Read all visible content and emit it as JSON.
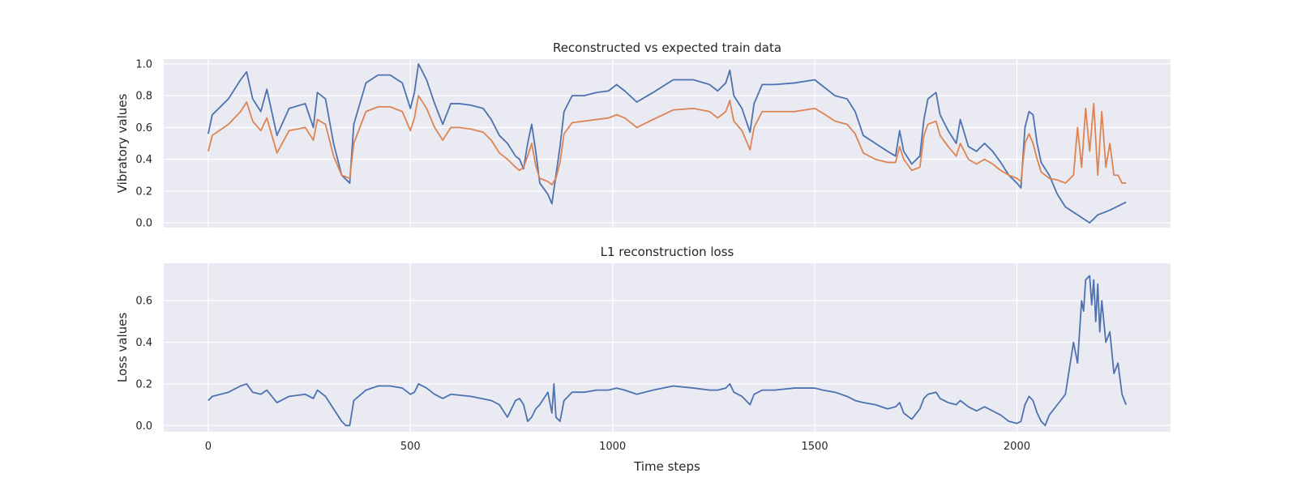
{
  "chart_data": [
    {
      "type": "line",
      "title": "Reconstructed vs expected train data",
      "ylabel": "Vibratory values",
      "xlabel": "",
      "xlim": [
        -110,
        2380
      ],
      "ylim": [
        -0.03,
        1.03
      ],
      "yticks": [
        0.0,
        0.2,
        0.4,
        0.6,
        0.8,
        1.0
      ],
      "ytick_labels": [
        "0.0",
        "0.2",
        "0.4",
        "0.6",
        "0.8",
        "1.0"
      ],
      "xticks": [
        0,
        500,
        1000,
        1500,
        2000
      ],
      "grid": true,
      "series": [
        {
          "color": "#4c72b0",
          "x": [
            0,
            10,
            50,
            80,
            95,
            110,
            130,
            145,
            170,
            200,
            240,
            260,
            270,
            290,
            310,
            330,
            350,
            360,
            390,
            420,
            450,
            480,
            500,
            510,
            520,
            540,
            560,
            580,
            600,
            620,
            650,
            680,
            700,
            720,
            740,
            760,
            770,
            780,
            790,
            800,
            810,
            820,
            840,
            850,
            860,
            870,
            880,
            900,
            930,
            960,
            990,
            1010,
            1030,
            1060,
            1100,
            1150,
            1200,
            1240,
            1260,
            1280,
            1290,
            1295,
            1300,
            1320,
            1340,
            1350,
            1370,
            1400,
            1450,
            1500,
            1520,
            1550,
            1580,
            1600,
            1620,
            1650,
            1680,
            1700,
            1710,
            1720,
            1740,
            1760,
            1770,
            1780,
            1800,
            1810,
            1830,
            1850,
            1860,
            1880,
            1900,
            1920,
            1940,
            1960,
            1980,
            2000,
            2010,
            2020,
            2030,
            2040,
            2050,
            2060,
            2080,
            2100,
            2120,
            2150,
            2180,
            2200,
            2230,
            2270
          ],
          "values": [
            0.56,
            0.68,
            0.78,
            0.9,
            0.95,
            0.78,
            0.7,
            0.84,
            0.55,
            0.72,
            0.75,
            0.6,
            0.82,
            0.78,
            0.5,
            0.3,
            0.25,
            0.62,
            0.88,
            0.93,
            0.93,
            0.88,
            0.72,
            0.82,
            1.0,
            0.9,
            0.75,
            0.62,
            0.75,
            0.75,
            0.74,
            0.72,
            0.65,
            0.55,
            0.5,
            0.42,
            0.4,
            0.34,
            0.5,
            0.62,
            0.45,
            0.25,
            0.18,
            0.12,
            0.3,
            0.48,
            0.7,
            0.8,
            0.8,
            0.82,
            0.83,
            0.87,
            0.83,
            0.76,
            0.82,
            0.9,
            0.9,
            0.87,
            0.83,
            0.88,
            0.96,
            0.88,
            0.8,
            0.72,
            0.57,
            0.75,
            0.87,
            0.87,
            0.88,
            0.9,
            0.86,
            0.8,
            0.78,
            0.7,
            0.55,
            0.5,
            0.45,
            0.42,
            0.58,
            0.45,
            0.37,
            0.42,
            0.65,
            0.78,
            0.82,
            0.68,
            0.58,
            0.5,
            0.65,
            0.48,
            0.45,
            0.5,
            0.45,
            0.38,
            0.3,
            0.25,
            0.22,
            0.6,
            0.7,
            0.68,
            0.5,
            0.38,
            0.3,
            0.18,
            0.1,
            0.05,
            0.0,
            0.05,
            0.08,
            0.13
          ]
        },
        {
          "color": "#dd8452",
          "x": [
            0,
            10,
            50,
            80,
            95,
            110,
            130,
            145,
            170,
            200,
            240,
            260,
            270,
            290,
            310,
            330,
            350,
            360,
            390,
            420,
            450,
            480,
            500,
            510,
            520,
            540,
            560,
            580,
            600,
            620,
            650,
            680,
            700,
            720,
            740,
            760,
            770,
            780,
            790,
            800,
            810,
            820,
            840,
            850,
            860,
            870,
            880,
            900,
            930,
            960,
            990,
            1010,
            1030,
            1060,
            1100,
            1150,
            1200,
            1240,
            1260,
            1280,
            1290,
            1295,
            1300,
            1320,
            1340,
            1350,
            1370,
            1400,
            1450,
            1500,
            1520,
            1550,
            1580,
            1600,
            1620,
            1650,
            1680,
            1700,
            1710,
            1720,
            1740,
            1760,
            1770,
            1780,
            1800,
            1810,
            1830,
            1850,
            1860,
            1880,
            1900,
            1920,
            1940,
            1960,
            1980,
            2000,
            2010,
            2020,
            2030,
            2040,
            2050,
            2060,
            2080,
            2100,
            2120,
            2140,
            2150,
            2160,
            2170,
            2180,
            2190,
            2200,
            2210,
            2220,
            2230,
            2240,
            2250,
            2260,
            2270
          ],
          "values": [
            0.45,
            0.55,
            0.62,
            0.7,
            0.76,
            0.64,
            0.58,
            0.66,
            0.44,
            0.58,
            0.6,
            0.52,
            0.65,
            0.62,
            0.42,
            0.3,
            0.28,
            0.5,
            0.7,
            0.73,
            0.73,
            0.7,
            0.58,
            0.66,
            0.8,
            0.72,
            0.6,
            0.52,
            0.6,
            0.6,
            0.59,
            0.57,
            0.52,
            0.44,
            0.4,
            0.35,
            0.33,
            0.35,
            0.42,
            0.5,
            0.36,
            0.28,
            0.26,
            0.24,
            0.28,
            0.38,
            0.56,
            0.63,
            0.64,
            0.65,
            0.66,
            0.68,
            0.66,
            0.6,
            0.65,
            0.71,
            0.72,
            0.7,
            0.66,
            0.7,
            0.77,
            0.7,
            0.64,
            0.58,
            0.46,
            0.6,
            0.7,
            0.7,
            0.7,
            0.72,
            0.69,
            0.64,
            0.62,
            0.56,
            0.44,
            0.4,
            0.38,
            0.38,
            0.48,
            0.4,
            0.33,
            0.35,
            0.55,
            0.62,
            0.64,
            0.55,
            0.48,
            0.42,
            0.5,
            0.4,
            0.37,
            0.4,
            0.37,
            0.33,
            0.3,
            0.28,
            0.26,
            0.5,
            0.56,
            0.5,
            0.4,
            0.32,
            0.28,
            0.27,
            0.25,
            0.3,
            0.6,
            0.35,
            0.72,
            0.45,
            0.75,
            0.3,
            0.7,
            0.35,
            0.5,
            0.3,
            0.3,
            0.25,
            0.25
          ]
        }
      ]
    },
    {
      "type": "line",
      "title": "L1 reconstruction loss",
      "ylabel": "Loss values",
      "xlabel": "Time steps",
      "xlim": [
        -110,
        2380
      ],
      "ylim": [
        -0.03,
        0.78
      ],
      "yticks": [
        0.0,
        0.2,
        0.4,
        0.6
      ],
      "ytick_labels": [
        "0.0",
        "0.2",
        "0.4",
        "0.6"
      ],
      "xticks": [
        0,
        500,
        1000,
        1500,
        2000
      ],
      "xtick_labels": [
        "0",
        "500",
        "1000",
        "1500",
        "2000"
      ],
      "grid": true,
      "series": [
        {
          "color": "#4c72b0",
          "x": [
            0,
            10,
            50,
            80,
            95,
            110,
            130,
            145,
            170,
            200,
            240,
            260,
            270,
            290,
            310,
            330,
            340,
            350,
            360,
            390,
            420,
            450,
            480,
            500,
            510,
            520,
            540,
            560,
            580,
            600,
            650,
            700,
            720,
            740,
            760,
            770,
            780,
            790,
            800,
            810,
            820,
            840,
            850,
            855,
            860,
            870,
            880,
            900,
            930,
            960,
            990,
            1010,
            1030,
            1060,
            1100,
            1150,
            1200,
            1240,
            1260,
            1280,
            1290,
            1295,
            1300,
            1320,
            1340,
            1350,
            1370,
            1400,
            1450,
            1500,
            1520,
            1550,
            1580,
            1600,
            1620,
            1650,
            1680,
            1700,
            1710,
            1720,
            1740,
            1760,
            1770,
            1780,
            1800,
            1810,
            1830,
            1850,
            1860,
            1880,
            1900,
            1920,
            1940,
            1960,
            1980,
            2000,
            2010,
            2020,
            2030,
            2040,
            2050,
            2060,
            2070,
            2080,
            2100,
            2120,
            2140,
            2150,
            2160,
            2165,
            2170,
            2180,
            2185,
            2190,
            2195,
            2200,
            2205,
            2210,
            2220,
            2230,
            2240,
            2250,
            2260,
            2270
          ],
          "values": [
            0.12,
            0.14,
            0.16,
            0.19,
            0.2,
            0.16,
            0.15,
            0.17,
            0.11,
            0.14,
            0.15,
            0.13,
            0.17,
            0.14,
            0.08,
            0.02,
            0.0,
            0.0,
            0.12,
            0.17,
            0.19,
            0.19,
            0.18,
            0.15,
            0.16,
            0.2,
            0.18,
            0.15,
            0.13,
            0.15,
            0.14,
            0.12,
            0.1,
            0.04,
            0.12,
            0.13,
            0.1,
            0.02,
            0.04,
            0.08,
            0.1,
            0.16,
            0.06,
            0.2,
            0.04,
            0.02,
            0.12,
            0.16,
            0.16,
            0.17,
            0.17,
            0.18,
            0.17,
            0.15,
            0.17,
            0.19,
            0.18,
            0.17,
            0.17,
            0.18,
            0.2,
            0.18,
            0.16,
            0.14,
            0.1,
            0.15,
            0.17,
            0.17,
            0.18,
            0.18,
            0.17,
            0.16,
            0.14,
            0.12,
            0.11,
            0.1,
            0.08,
            0.09,
            0.11,
            0.06,
            0.03,
            0.08,
            0.13,
            0.15,
            0.16,
            0.13,
            0.11,
            0.1,
            0.12,
            0.09,
            0.07,
            0.09,
            0.07,
            0.05,
            0.02,
            0.01,
            0.02,
            0.1,
            0.14,
            0.12,
            0.06,
            0.02,
            0.0,
            0.05,
            0.1,
            0.15,
            0.4,
            0.3,
            0.6,
            0.55,
            0.7,
            0.72,
            0.58,
            0.7,
            0.5,
            0.68,
            0.45,
            0.6,
            0.4,
            0.45,
            0.25,
            0.3,
            0.15,
            0.1
          ]
        }
      ]
    }
  ]
}
